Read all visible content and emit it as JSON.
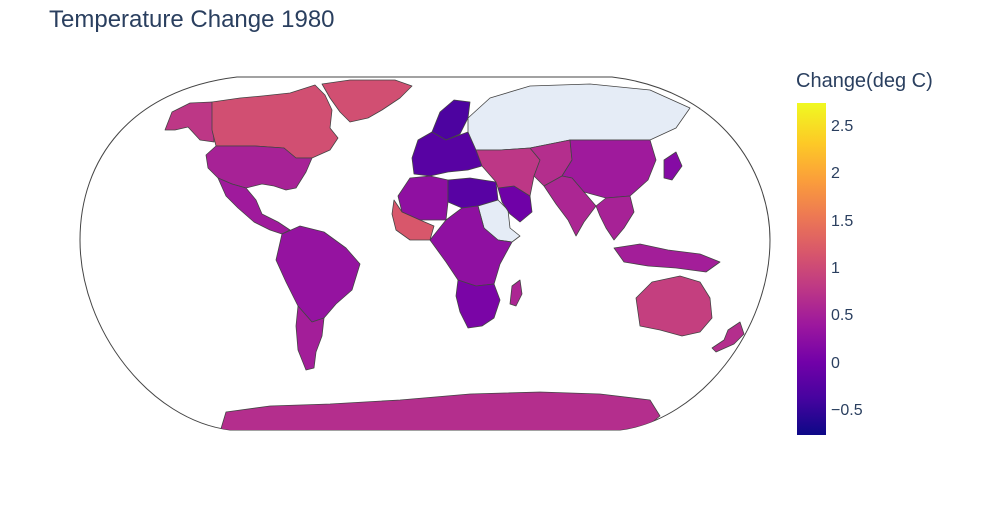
{
  "title": "Temperature Change 1980",
  "colorbar": {
    "title": "Change(deg C)",
    "min": -0.75,
    "max": 2.75,
    "colors": [
      "#0d0887",
      "#46039f",
      "#7201a8",
      "#9c179e",
      "#bd3786",
      "#d8576b",
      "#ed7953",
      "#fb9f3a",
      "#fdca26",
      "#f0f921"
    ],
    "ticks": [
      {
        "value": 2.5,
        "label": "2.5"
      },
      {
        "value": 2,
        "label": "2"
      },
      {
        "value": 1.5,
        "label": "1.5"
      },
      {
        "value": 1,
        "label": "1"
      },
      {
        "value": 0.5,
        "label": "0.5"
      },
      {
        "value": 0,
        "label": "0"
      },
      {
        "value": -0.5,
        "label": "−0.5"
      }
    ]
  },
  "map": {
    "projection": "robinson",
    "no_data_color": "#e5ecf6",
    "border_color": "#444444",
    "regions": [
      {
        "name": "canada",
        "value": 1.1
      },
      {
        "name": "alaska",
        "value": 0.8
      },
      {
        "name": "greenland",
        "value": 1.1
      },
      {
        "name": "usa",
        "value": 0.55
      },
      {
        "name": "mexico-central-america",
        "value": 0.45
      },
      {
        "name": "south-america",
        "value": 0.35
      },
      {
        "name": "south-america-south",
        "value": 0.5
      },
      {
        "name": "scandinavia",
        "value": -0.3
      },
      {
        "name": "europe",
        "value": -0.2
      },
      {
        "name": "russia",
        "value": null
      },
      {
        "name": "north-africa",
        "value": 0.3
      },
      {
        "name": "sahel-west",
        "value": 1.2
      },
      {
        "name": "egypt-libya",
        "value": -0.2
      },
      {
        "name": "arabia",
        "value": null
      },
      {
        "name": "gulf",
        "value": 0.0
      },
      {
        "name": "central-africa",
        "value": 0.3
      },
      {
        "name": "southern-africa",
        "value": 0.1
      },
      {
        "name": "madagascar",
        "value": 0.6
      },
      {
        "name": "middle-east",
        "value": 0.8
      },
      {
        "name": "central-asia",
        "value": 0.7
      },
      {
        "name": "china",
        "value": 0.45
      },
      {
        "name": "india",
        "value": 0.6
      },
      {
        "name": "southeast-asia",
        "value": 0.55
      },
      {
        "name": "japan",
        "value": 0.2
      },
      {
        "name": "indonesia",
        "value": 0.5
      },
      {
        "name": "australia",
        "value": 0.9
      },
      {
        "name": "new-zealand",
        "value": 0.7
      },
      {
        "name": "antarctica",
        "value": 0.7
      }
    ]
  }
}
